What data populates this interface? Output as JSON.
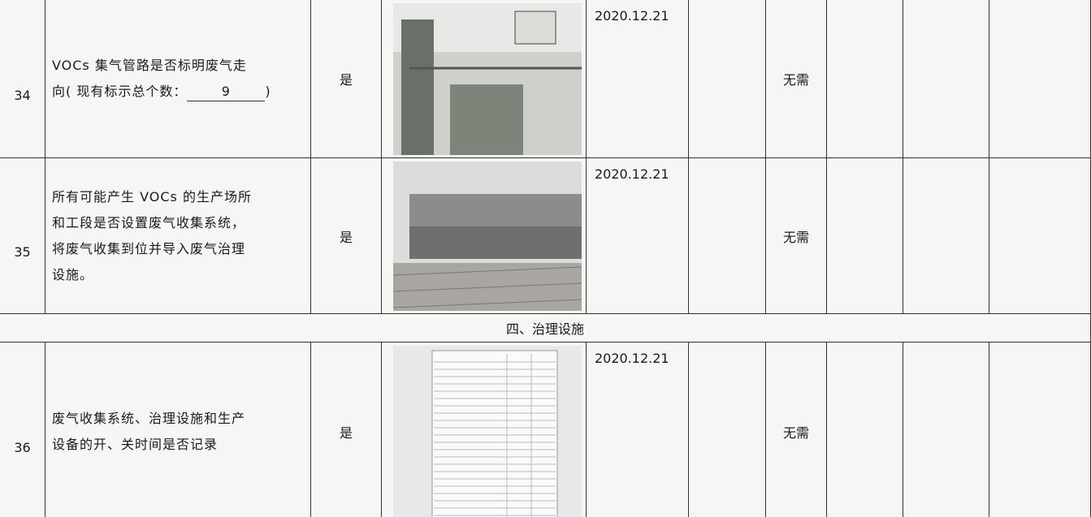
{
  "table": {
    "rows": [
      {
        "number": "34",
        "description": [
          "VOCs 集气管路是否标明废气走",
          "向( 现有标示总个数："
        ],
        "count": "9",
        "count_close": ")",
        "answer": "是",
        "date": "2020.12.21",
        "status": "无需"
      },
      {
        "number": "35",
        "description": [
          "所有可能产生 VOCs 的生产场所",
          "和工段是否设置废气收集系统，",
          "将废气收集到位并导入废气治理",
          "设施。"
        ],
        "answer": "是",
        "date": "2020.12.21",
        "status": "无需"
      }
    ],
    "section": "四、治理设施",
    "rows_after": [
      {
        "number": "36",
        "description": [
          "废气收集系统、治理设施和生产",
          "设备的开、关时间是否记录"
        ],
        "answer": "是",
        "date": "2020.12.21",
        "status": "无需"
      }
    ]
  }
}
